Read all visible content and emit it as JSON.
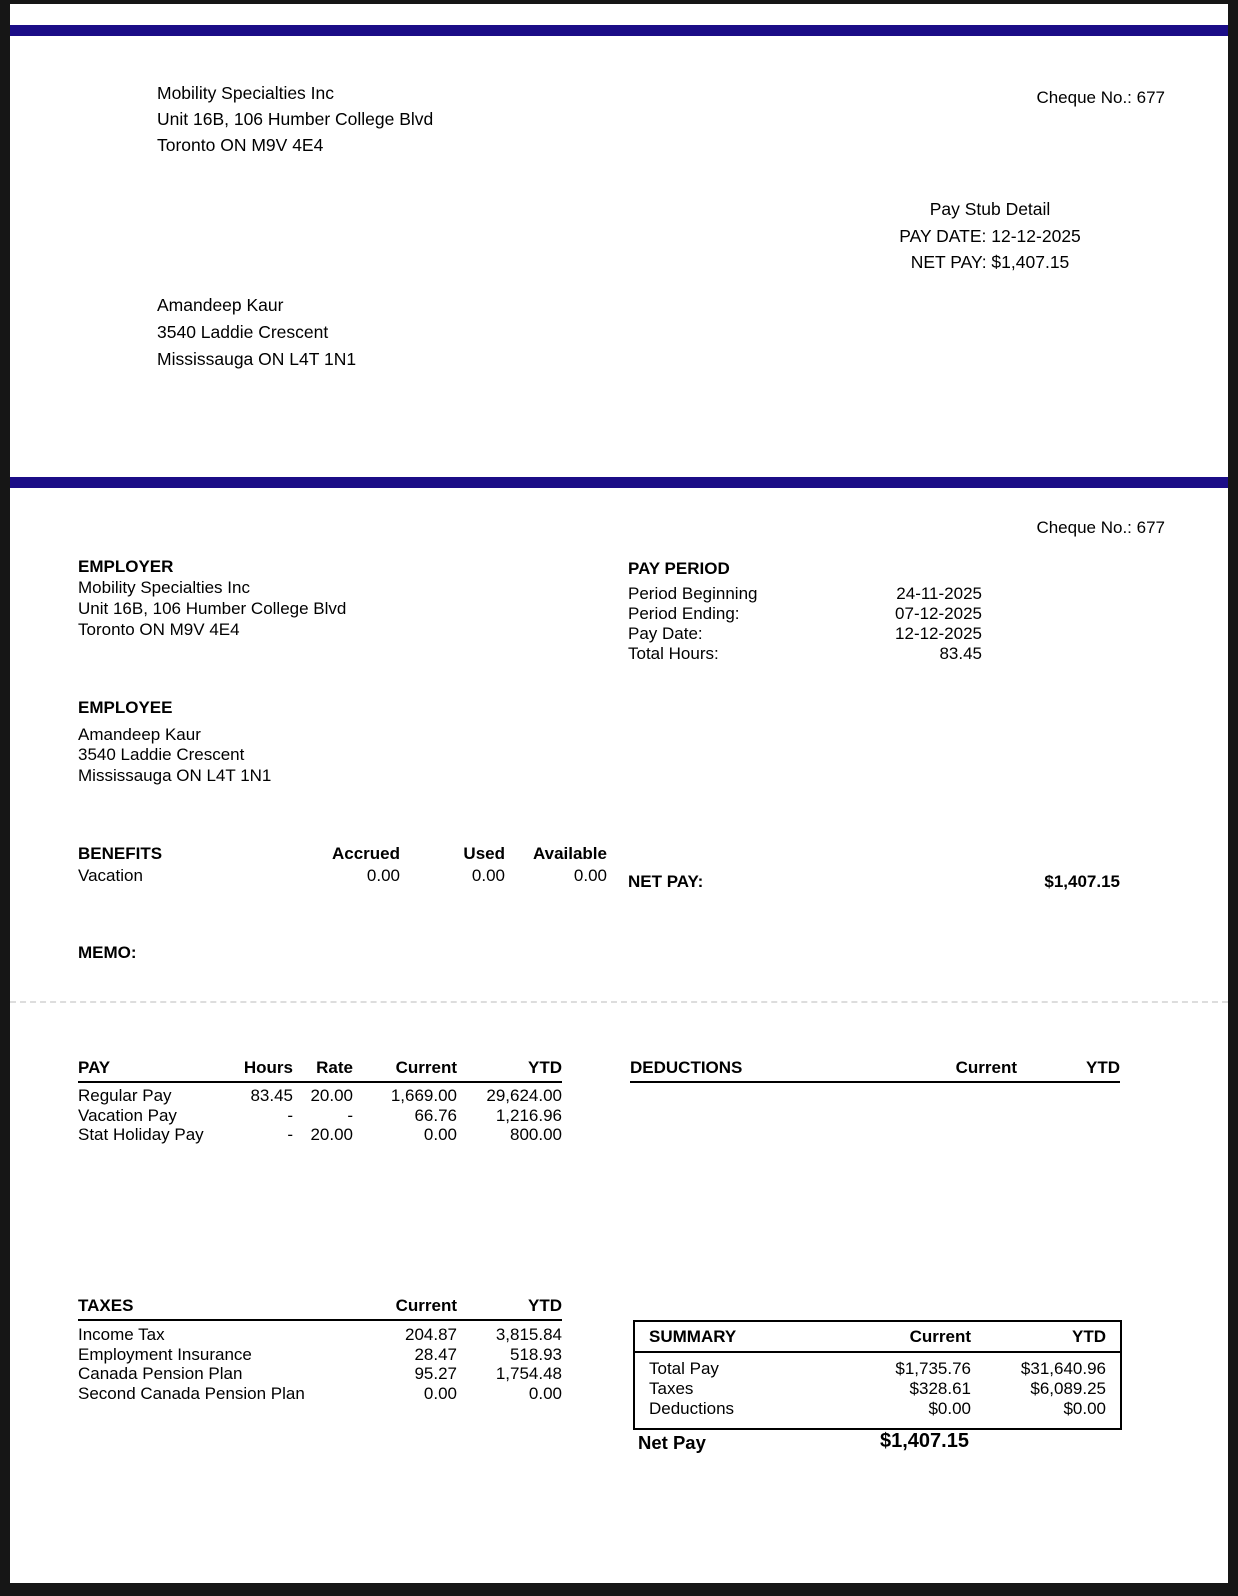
{
  "colors": {
    "accent": "#1b0d87",
    "frame": "#161616"
  },
  "cheque_no": "Cheque No.: 677",
  "top_stub": {
    "company_lines": [
      "Mobility Specialties Inc",
      "Unit 16B, 106 Humber College Blvd",
      "Toronto ON M9V 4E4"
    ],
    "title": "Pay Stub Detail",
    "pay_date_line": "PAY DATE: 12-12-2025",
    "net_pay_line": "NET PAY: $1,407.15",
    "employee_lines": [
      "Amandeep Kaur",
      "3540 Laddie Crescent",
      "Mississauga ON L4T 1N1"
    ]
  },
  "employer": {
    "heading": "EMPLOYER",
    "lines": [
      "Mobility Specialties Inc",
      "Unit 16B, 106 Humber College Blvd",
      "Toronto ON M9V 4E4"
    ]
  },
  "employee": {
    "heading": "EMPLOYEE",
    "lines": [
      "Amandeep Kaur",
      "3540 Laddie Crescent",
      "Mississauga ON L4T 1N1"
    ]
  },
  "pay_period": {
    "heading": "PAY PERIOD",
    "rows": [
      {
        "label": "Period Beginning",
        "value": "24-11-2025"
      },
      {
        "label": "Period Ending:",
        "value": "07-12-2025"
      },
      {
        "label": "Pay Date:",
        "value": "12-12-2025"
      },
      {
        "label": "Total Hours:",
        "value": "83.45"
      }
    ]
  },
  "benefits": {
    "heading": "BENEFITS",
    "columns": [
      "Accrued",
      "Used",
      "Available"
    ],
    "rows": [
      {
        "label": "Vacation",
        "accrued": "0.00",
        "used": "0.00",
        "available": "0.00"
      }
    ]
  },
  "net_pay_line": {
    "label": "NET PAY:",
    "value": "$1,407.15"
  },
  "memo_label": "MEMO:",
  "pay_table": {
    "heading": "PAY",
    "columns": [
      "Hours",
      "Rate",
      "Current",
      "YTD"
    ],
    "rows": [
      {
        "label": "Regular Pay",
        "hours": "83.45",
        "rate": "20.00",
        "current": "1,669.00",
        "ytd": "29,624.00"
      },
      {
        "label": "Vacation Pay",
        "hours": "-",
        "rate": "-",
        "current": "66.76",
        "ytd": "1,216.96"
      },
      {
        "label": "Stat Holiday Pay",
        "hours": "-",
        "rate": "20.00",
        "current": "0.00",
        "ytd": "800.00"
      }
    ]
  },
  "deductions_table": {
    "heading": "DEDUCTIONS",
    "columns": [
      "Current",
      "YTD"
    ],
    "rows": []
  },
  "taxes_table": {
    "heading": "TAXES",
    "columns": [
      "Current",
      "YTD"
    ],
    "rows": [
      {
        "label": "Income Tax",
        "current": "204.87",
        "ytd": "3,815.84"
      },
      {
        "label": "Employment Insurance",
        "current": "28.47",
        "ytd": "518.93"
      },
      {
        "label": "Canada Pension Plan",
        "current": "95.27",
        "ytd": "1,754.48"
      },
      {
        "label": "Second Canada Pension Plan",
        "current": "0.00",
        "ytd": "0.00"
      }
    ]
  },
  "summary": {
    "heading": "SUMMARY",
    "columns": [
      "Current",
      "YTD"
    ],
    "rows": [
      {
        "label": "Total Pay",
        "current": "$1,735.76",
        "ytd": "$31,640.96"
      },
      {
        "label": "Taxes",
        "current": "$328.61",
        "ytd": "$6,089.25"
      },
      {
        "label": "Deductions",
        "current": "$0.00",
        "ytd": "$0.00"
      }
    ]
  },
  "net_pay_footer": {
    "label": "Net Pay",
    "value": "$1,407.15"
  }
}
